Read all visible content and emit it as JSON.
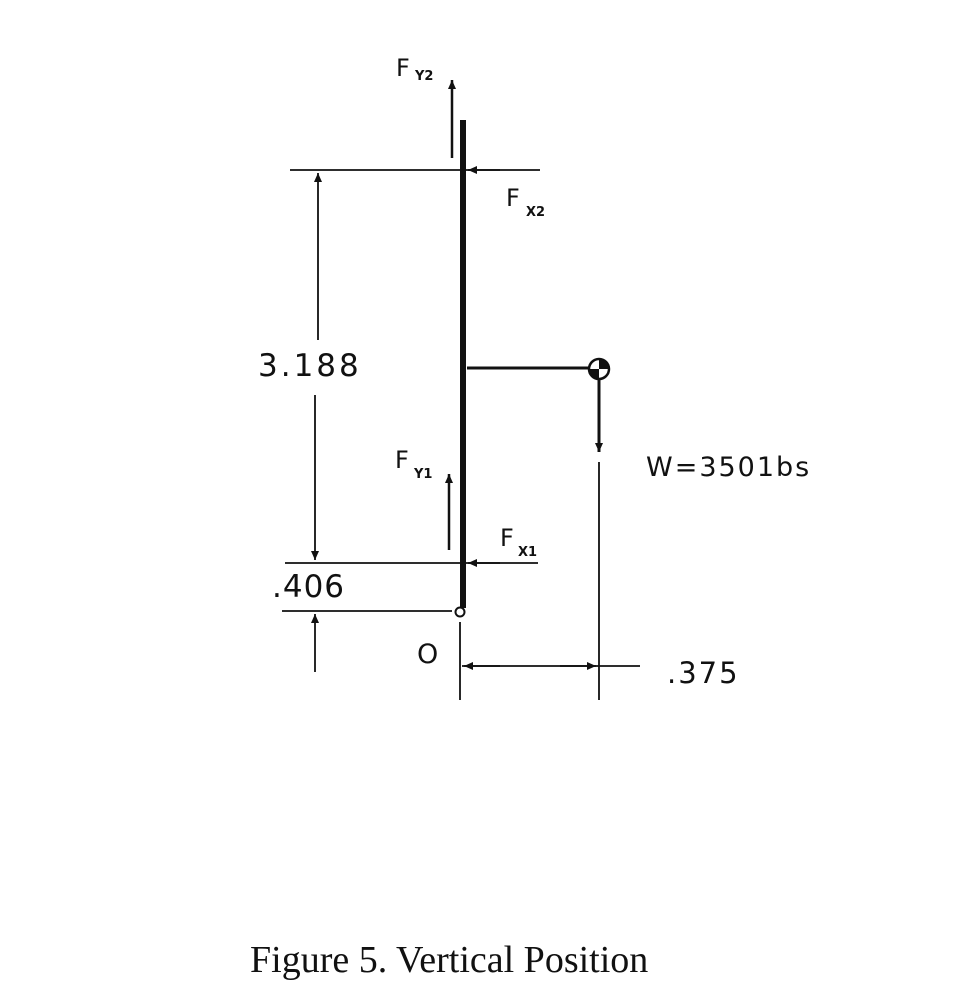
{
  "figure": {
    "caption": "Figure 5.  Vertical Position",
    "labels": {
      "fy2_main": "F",
      "fy2_sub": "Y2",
      "fx2_main": "F",
      "fx2_sub": "X2",
      "fy1_main": "F",
      "fy1_sub": "Y1",
      "fx1_main": "F",
      "fx1_sub": "X1",
      "weight": "W=3501bs",
      "dim_height": "3.188",
      "dim_offset": ".406",
      "dim_horizontal": ".375",
      "origin": "O"
    }
  }
}
